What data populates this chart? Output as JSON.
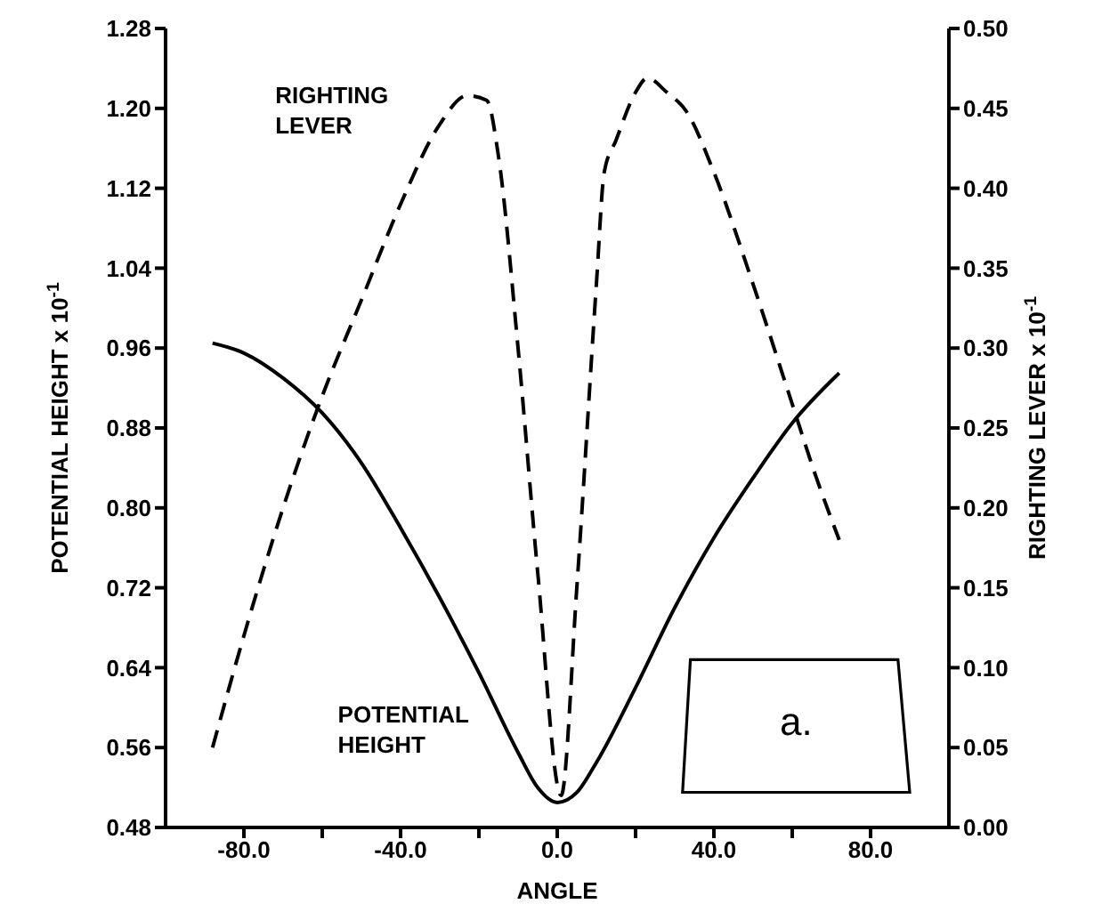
{
  "chart_data": {
    "type": "line",
    "xlabel": "ANGLE",
    "ylabel": "POTENTIAL HEIGHT x 10$^{-1}$",
    "y2label": "RIGHTING LEVER x 10$^{-1}$",
    "xlim": [
      -100,
      100
    ],
    "xticks": [
      {
        "value": -80,
        "label": "-80.0"
      },
      {
        "value": -60,
        "label": null
      },
      {
        "value": -40,
        "label": "-40.0"
      },
      {
        "value": -20,
        "label": null
      },
      {
        "value": 0,
        "label": "0.0"
      },
      {
        "value": 20,
        "label": null
      },
      {
        "value": 40,
        "label": "40.0"
      },
      {
        "value": 60,
        "label": null
      },
      {
        "value": 80,
        "label": "80.0"
      }
    ],
    "ylim": [
      0.48,
      1.28
    ],
    "yticks": [
      {
        "value": 0.48,
        "label": "0.48"
      },
      {
        "value": 0.56,
        "label": "0.56"
      },
      {
        "value": 0.64,
        "label": "0.64"
      },
      {
        "value": 0.72,
        "label": "0.72"
      },
      {
        "value": 0.8,
        "label": "0.80"
      },
      {
        "value": 0.88,
        "label": "0.88"
      },
      {
        "value": 0.96,
        "label": "0.96"
      },
      {
        "value": 1.04,
        "label": "1.04"
      },
      {
        "value": 1.12,
        "label": "1.12"
      },
      {
        "value": 1.2,
        "label": "1.20"
      },
      {
        "value": 1.28,
        "label": "1.28"
      }
    ],
    "y2lim": [
      0,
      0.5
    ],
    "y2ticks": [
      {
        "value": 0,
        "label": "0.00"
      },
      {
        "value": 0.05,
        "label": "0.05"
      },
      {
        "value": 0.1,
        "label": "0.10"
      },
      {
        "value": 0.15,
        "label": "0.15"
      },
      {
        "value": 0.2,
        "label": "0.20"
      },
      {
        "value": 0.25,
        "label": "0.25"
      },
      {
        "value": 0.3,
        "label": "0.30"
      },
      {
        "value": 0.35,
        "label": "0.35"
      },
      {
        "value": 0.4,
        "label": "0.40"
      },
      {
        "value": 0.45,
        "label": "0.45"
      },
      {
        "value": 0.5,
        "label": "0.50"
      }
    ],
    "grid": false,
    "legend": false,
    "marker": "none",
    "annotations": [
      "a."
    ],
    "series": [
      {
        "name": "POTENTIAL HEIGHT",
        "color": "#000000",
        "line_style": "solid",
        "x": [
          -88,
          -80,
          -70,
          -60,
          -50,
          -40,
          -30,
          -20,
          -10,
          -5,
          0,
          5,
          10,
          20,
          30,
          40,
          50,
          60,
          72
        ],
        "values": [
          0.965,
          0.955,
          0.93,
          0.895,
          0.845,
          0.78,
          0.71,
          0.635,
          0.555,
          0.52,
          0.505,
          0.515,
          0.545,
          0.62,
          0.7,
          0.77,
          0.83,
          0.885,
          0.935
        ]
      },
      {
        "name": "RIGHTING LEVER",
        "color": "#000000",
        "line_style": "dashed",
        "axis": "y2",
        "x": [
          -88,
          -80,
          -70,
          -60,
          -50,
          -40,
          -30,
          -23,
          -18,
          -15,
          -10,
          -5,
          1,
          5,
          10,
          12,
          15,
          20,
          23,
          28,
          33,
          40,
          50,
          60,
          66,
          72
        ],
        "values": [
          0.05,
          0.12,
          0.2,
          0.27,
          0.33,
          0.39,
          0.44,
          0.458,
          0.455,
          0.42,
          0.3,
          0.16,
          0.02,
          0.15,
          0.34,
          0.41,
          0.43,
          0.46,
          0.469,
          0.46,
          0.448,
          0.41,
          0.34,
          0.265,
          0.22,
          0.18
        ]
      }
    ]
  }
}
